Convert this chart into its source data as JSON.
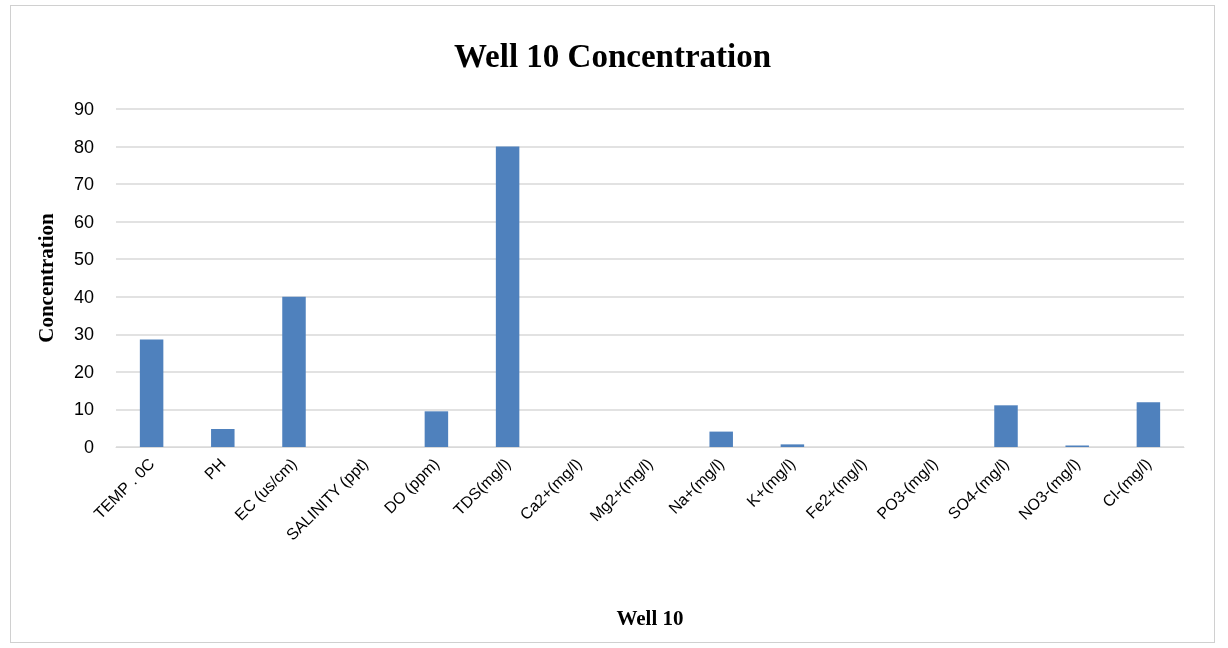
{
  "chart_data": {
    "type": "bar",
    "title": "Well 10 Concentration",
    "xlabel": "Well 10",
    "ylabel": "Concentration",
    "categories": [
      "TEMP . 0C",
      "PH",
      "EC (us/cm)",
      "SALINITY (ppt)",
      "DO (ppm)",
      "TDS(mg/l)",
      "Ca2+(mg/l)",
      "Mg2+(mg/l)",
      "Na+(mg/l)",
      "K+(mg/l)",
      "Fe2+(mg/l)",
      "PO3-(mg/l)",
      "SO4-(mg/l)",
      "NO3-(mg/l)",
      "Cl-(mg/l)"
    ],
    "values": [
      28.6,
      4.8,
      40,
      0,
      9.5,
      80,
      0,
      0,
      4.1,
      0.7,
      0,
      0,
      11.1,
      0.4,
      11.9
    ],
    "color": "#4f81bd",
    "ylim": [
      0,
      90
    ],
    "yticks": [
      0,
      10,
      20,
      30,
      40,
      50,
      60,
      70,
      80,
      90
    ],
    "grid": "y"
  }
}
